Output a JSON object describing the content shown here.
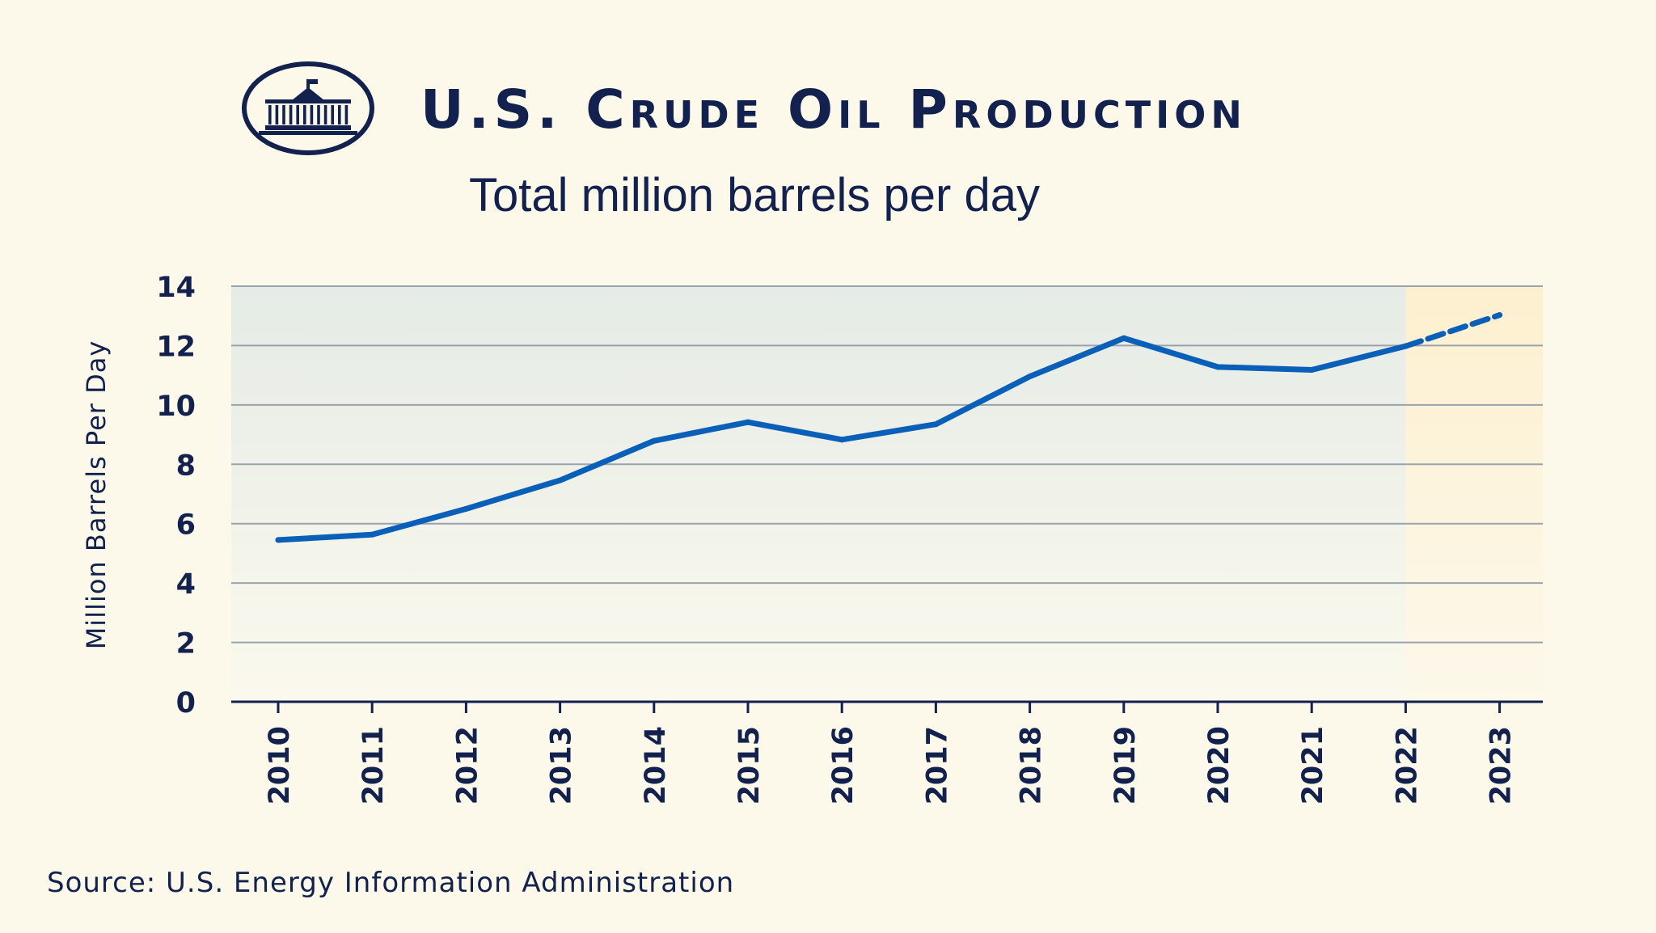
{
  "header": {
    "title": "U.S. Crude Oil Production",
    "subtitle": "Total million barrels per day",
    "logo": "white-house-seal-icon"
  },
  "footer": {
    "source": "Source: U.S. Energy Information Administration"
  },
  "colors": {
    "background": "#fcf9ea",
    "text": "#12214d",
    "line": "#0a5fb8",
    "plot_fill_top": "#e5ebe6",
    "forecast_fill": "#fdf2d6",
    "grid": "#9aa3ad"
  },
  "chart_data": {
    "type": "line",
    "title": "U.S. Crude Oil Production",
    "subtitle": "Total million barrels per day",
    "xlabel": "",
    "ylabel": "Million Barrels Per Day",
    "ylim": [
      0,
      14
    ],
    "yticks": [
      0,
      2,
      4,
      6,
      8,
      10,
      12,
      14
    ],
    "grid": true,
    "x": [
      "2010",
      "2011",
      "2012",
      "2013",
      "2014",
      "2015",
      "2016",
      "2017",
      "2018",
      "2019",
      "2020",
      "2021",
      "2022",
      "2023"
    ],
    "series": [
      {
        "values": [
          5.45,
          5.63,
          6.5,
          7.46,
          8.79,
          9.42,
          8.83,
          9.35,
          10.96,
          12.25,
          11.28,
          11.18,
          11.98,
          13.03
        ],
        "forecast_from_index": 12
      }
    ],
    "forecast_highlight_x": [
      "2022",
      "2023"
    ]
  }
}
